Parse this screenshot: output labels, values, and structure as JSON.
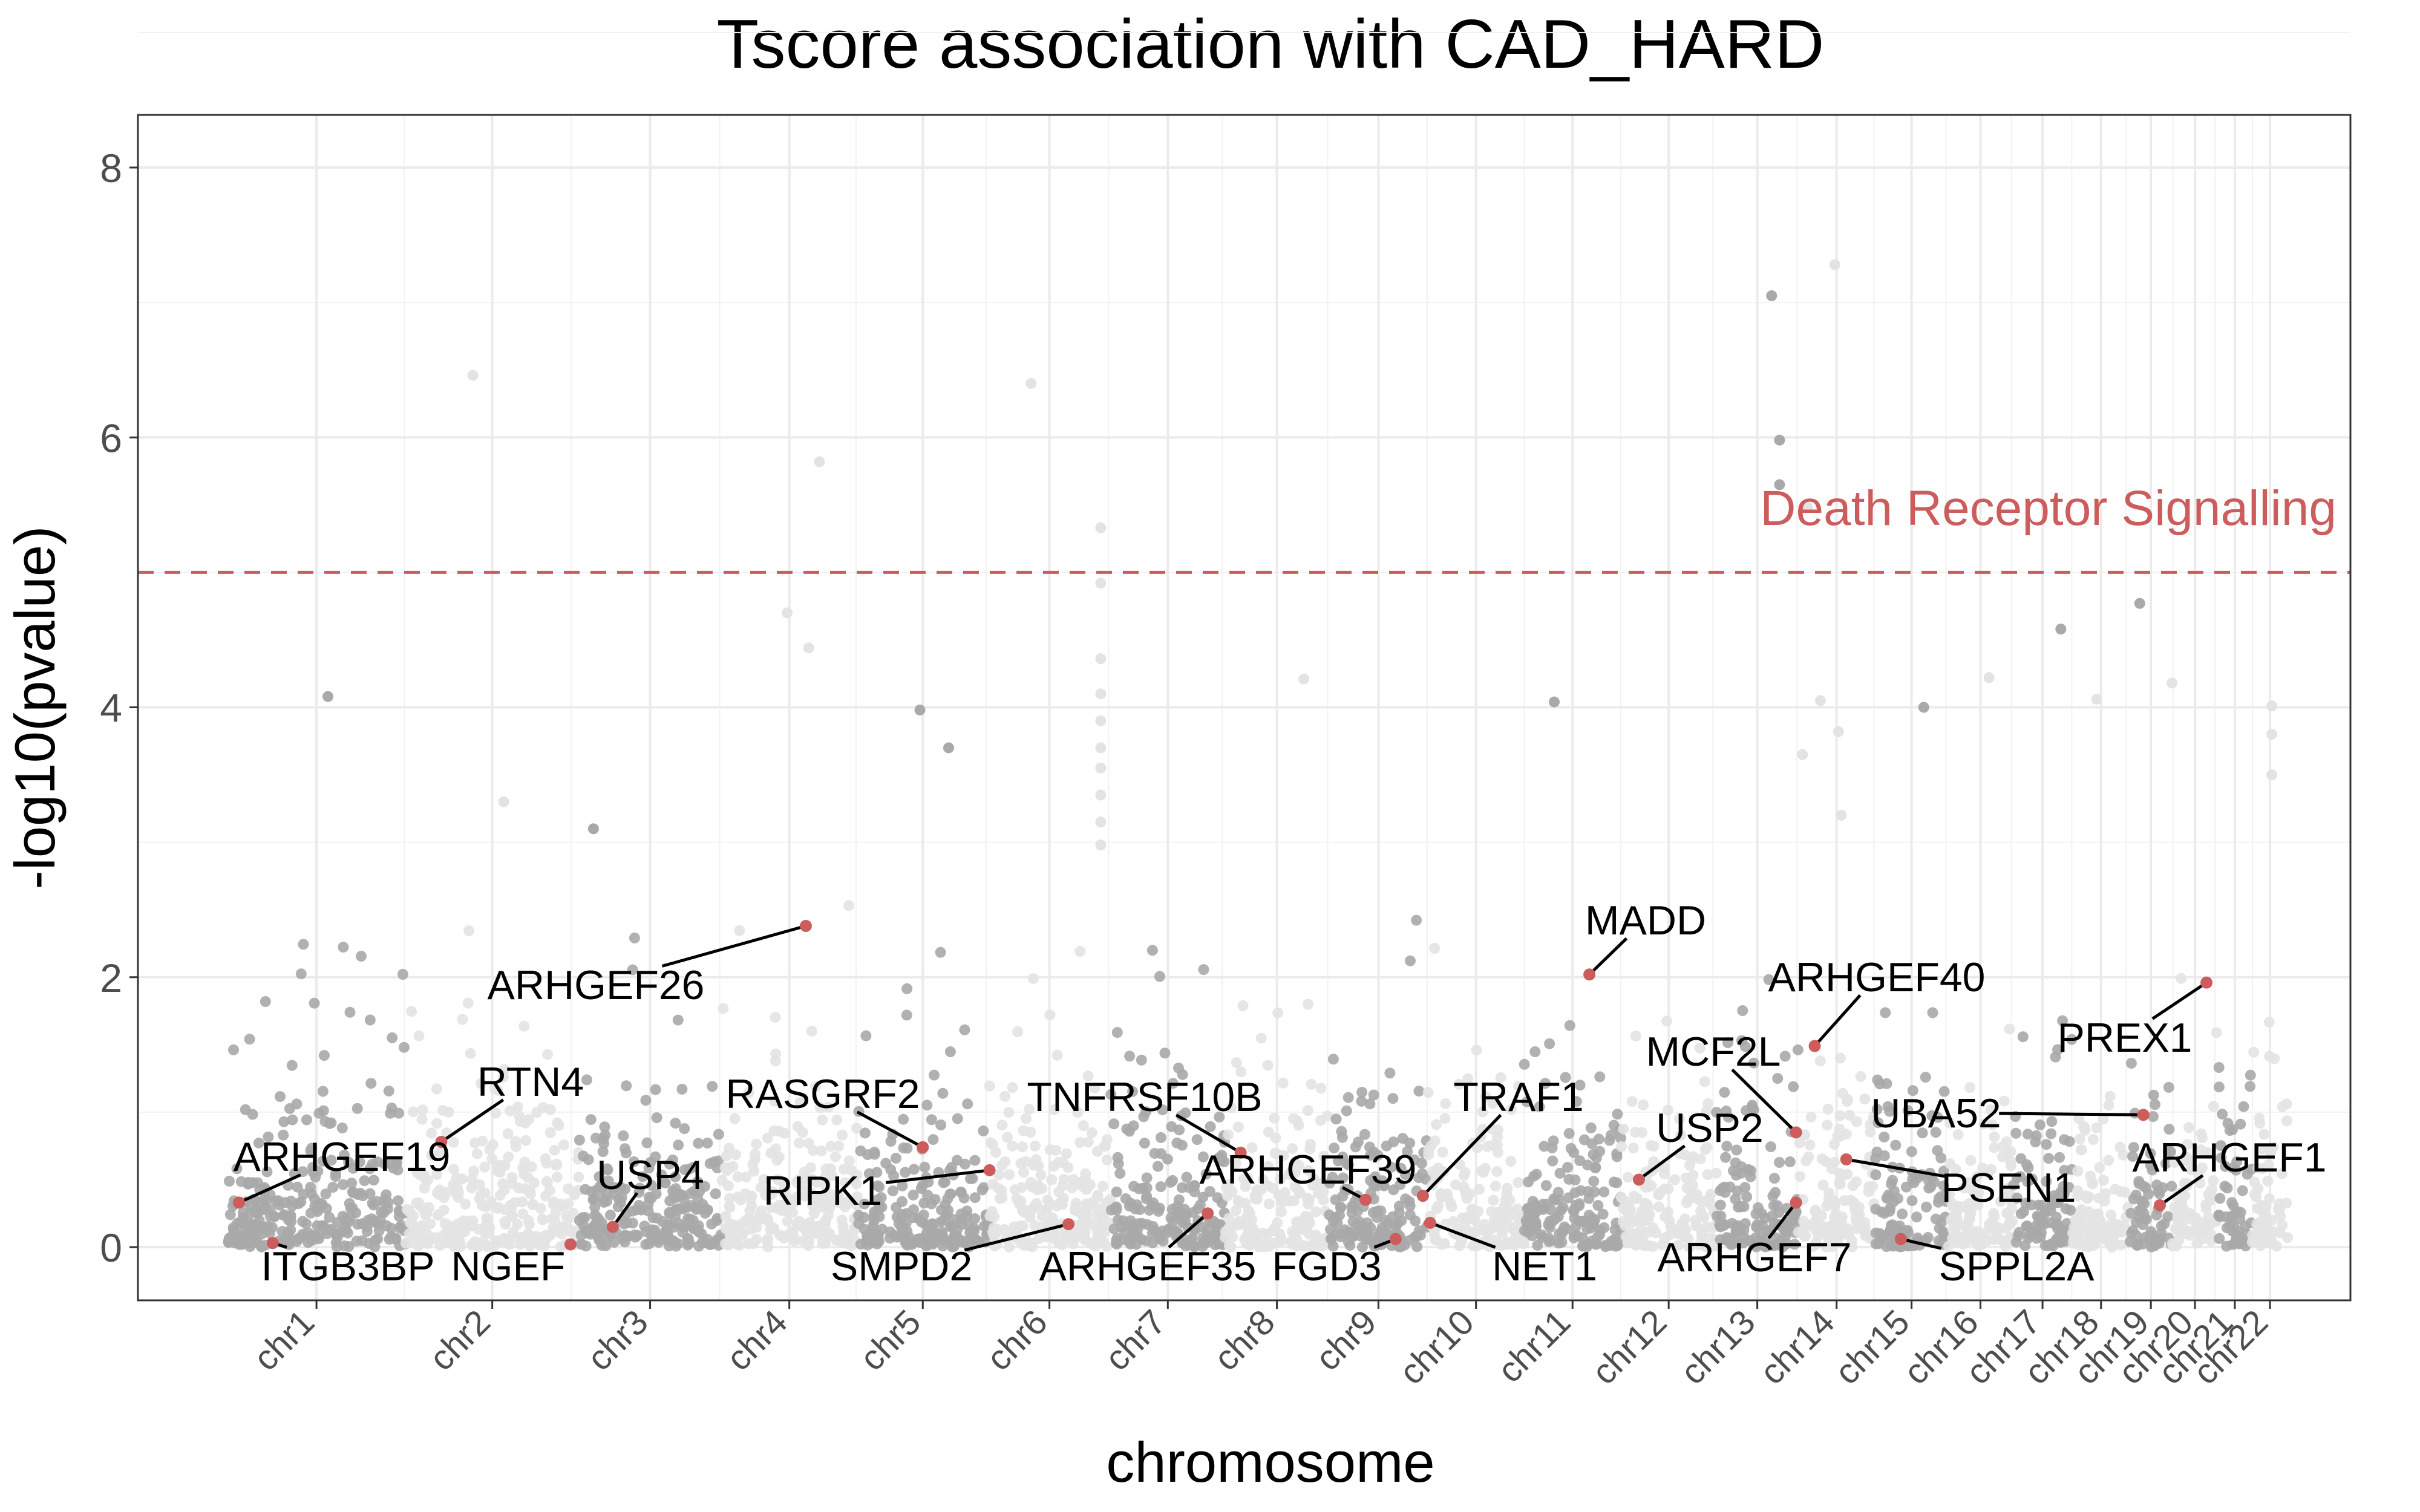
{
  "chart_data": {
    "type": "scatter",
    "title": "Tscore association with CAD_HARD",
    "xlabel": "chromosome",
    "ylabel": "-log10(pvalue)",
    "ylim": [
      -0.4,
      8.4
    ],
    "y_ticks": [
      0,
      2,
      4,
      6,
      8
    ],
    "grid": true,
    "threshold": {
      "value": 5,
      "label": "Death Receptor Signalling",
      "color": "#cd5c5c"
    },
    "colors": {
      "highlight": "#cd5c5c",
      "odd_chromosome": "#a9a9a9",
      "even_chromosome": "#e3e3e3",
      "threshold": "#cd5c5c"
    },
    "chromosomes": [
      {
        "label": "chr1",
        "start": 0,
        "end": 248
      },
      {
        "label": "chr2",
        "start": 248,
        "end": 490
      },
      {
        "label": "chr3",
        "start": 490,
        "end": 688
      },
      {
        "label": "chr4",
        "start": 688,
        "end": 878
      },
      {
        "label": "chr5",
        "start": 878,
        "end": 1060
      },
      {
        "label": "chr6",
        "start": 1060,
        "end": 1231
      },
      {
        "label": "chr7",
        "start": 1231,
        "end": 1390
      },
      {
        "label": "chr8",
        "start": 1390,
        "end": 1535
      },
      {
        "label": "chr9",
        "start": 1535,
        "end": 1673
      },
      {
        "label": "chr10",
        "start": 1673,
        "end": 1807
      },
      {
        "label": "chr11",
        "start": 1807,
        "end": 1942
      },
      {
        "label": "chr12",
        "start": 1942,
        "end": 2075
      },
      {
        "label": "chr13",
        "start": 2075,
        "end": 2189
      },
      {
        "label": "chr14",
        "start": 2189,
        "end": 2296
      },
      {
        "label": "chr15",
        "start": 2296,
        "end": 2398
      },
      {
        "label": "chr16",
        "start": 2398,
        "end": 2488
      },
      {
        "label": "chr17",
        "start": 2488,
        "end": 2571
      },
      {
        "label": "chr18",
        "start": 2571,
        "end": 2651
      },
      {
        "label": "chr19",
        "start": 2651,
        "end": 2710
      },
      {
        "label": "chr20",
        "start": 2710,
        "end": 2774
      },
      {
        "label": "chr21",
        "start": 2774,
        "end": 2821
      },
      {
        "label": "chr22",
        "start": 2821,
        "end": 2872
      }
    ],
    "notable_points": [
      {
        "x": 342,
        "y": 6.46
      },
      {
        "x": 1120,
        "y": 6.4
      },
      {
        "x": 2240,
        "y": 7.28
      },
      {
        "x": 2152,
        "y": 7.05
      },
      {
        "x": 2163,
        "y": 5.98
      },
      {
        "x": 2163,
        "y": 5.65
      },
      {
        "x": 2202,
        "y": 5.48
      },
      {
        "x": 825,
        "y": 5.82
      },
      {
        "x": 1217,
        "y": 5.33
      },
      {
        "x": 1217,
        "y": 4.92
      },
      {
        "x": 1217,
        "y": 4.36
      },
      {
        "x": 1217,
        "y": 4.1
      },
      {
        "x": 1217,
        "y": 3.9
      },
      {
        "x": 1217,
        "y": 3.7
      },
      {
        "x": 1217,
        "y": 3.55
      },
      {
        "x": 1217,
        "y": 3.35
      },
      {
        "x": 1217,
        "y": 3.15
      },
      {
        "x": 1217,
        "y": 2.98
      },
      {
        "x": 1500,
        "y": 4.21
      },
      {
        "x": 1849,
        "y": 4.04
      },
      {
        "x": 2220,
        "y": 4.05
      },
      {
        "x": 2245,
        "y": 3.82
      },
      {
        "x": 2364,
        "y": 4.0
      },
      {
        "x": 2455,
        "y": 4.22
      },
      {
        "x": 2605,
        "y": 4.06
      },
      {
        "x": 2849,
        "y": 4.01
      },
      {
        "x": 2849,
        "y": 3.8
      },
      {
        "x": 2849,
        "y": 3.5
      },
      {
        "x": 965,
        "y": 3.98
      },
      {
        "x": 1005,
        "y": 3.7
      },
      {
        "x": 810,
        "y": 4.44
      },
      {
        "x": 780,
        "y": 4.7
      },
      {
        "x": 2710,
        "y": 4.18
      },
      {
        "x": 2665,
        "y": 4.77
      },
      {
        "x": 2555,
        "y": 4.58
      },
      {
        "x": 140,
        "y": 4.08
      },
      {
        "x": 385,
        "y": 3.3
      },
      {
        "x": 510,
        "y": 3.1
      },
      {
        "x": 2195,
        "y": 3.65
      },
      {
        "x": 2249,
        "y": 3.2
      }
    ],
    "highlighted": [
      {
        "gene": "ARHGEF19",
        "x": 16,
        "y": 0.33
      },
      {
        "gene": "ITGB3BP",
        "x": 63,
        "y": 0.03
      },
      {
        "gene": "RTN4",
        "x": 298,
        "y": 0.78
      },
      {
        "gene": "NGEF",
        "x": 478,
        "y": 0.02
      },
      {
        "gene": "USP4",
        "x": 537,
        "y": 0.15
      },
      {
        "gene": "ARHGEF26",
        "x": 806,
        "y": 2.38
      },
      {
        "gene": "RASGRF2",
        "x": 969,
        "y": 0.74
      },
      {
        "gene": "RIPK1",
        "x": 1062,
        "y": 0.57
      },
      {
        "gene": "SMPD2",
        "x": 1172,
        "y": 0.17
      },
      {
        "gene": "TNFRSF10B",
        "x": 1412,
        "y": 0.7
      },
      {
        "gene": "ARHGEF35",
        "x": 1366,
        "y": 0.25
      },
      {
        "gene": "ARHGEF39",
        "x": 1586,
        "y": 0.35
      },
      {
        "gene": "FGD3",
        "x": 1628,
        "y": 0.06
      },
      {
        "gene": "TRAF1",
        "x": 1666,
        "y": 0.38
      },
      {
        "gene": "NET1",
        "x": 1676,
        "y": 0.18
      },
      {
        "gene": "MADD",
        "x": 1898,
        "y": 2.02
      },
      {
        "gene": "USP2",
        "x": 1967,
        "y": 0.5
      },
      {
        "gene": "MCF2L",
        "x": 2186,
        "y": 0.85
      },
      {
        "gene": "ARHGEF7",
        "x": 2186,
        "y": 0.33
      },
      {
        "gene": "ARHGEF40",
        "x": 2212,
        "y": 1.49
      },
      {
        "gene": "PSEN1",
        "x": 2256,
        "y": 0.65
      },
      {
        "gene": "SPPL2A",
        "x": 2332,
        "y": 0.06
      },
      {
        "gene": "UBA52",
        "x": 2670,
        "y": 0.98
      },
      {
        "gene": "PREX1",
        "x": 2758,
        "y": 1.96
      },
      {
        "gene": "ARHGEF1",
        "x": 2693,
        "y": 0.31
      }
    ]
  }
}
